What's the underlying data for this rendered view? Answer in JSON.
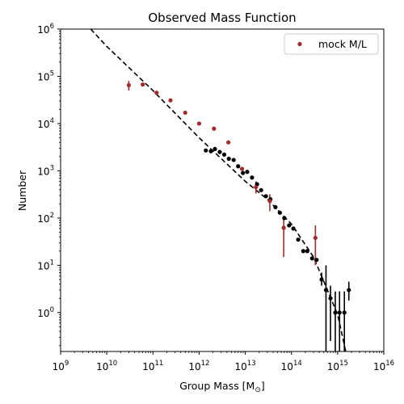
{
  "chart_data": {
    "type": "scatter",
    "title": "Observed Mass Function",
    "xlabel": "Group Mass [M",
    "xlabel_sub": "⊙",
    "xlabel_close": "]",
    "ylabel": "Number",
    "xscale": "log",
    "yscale": "log",
    "xlim": [
      1000000000.0,
      1e+16
    ],
    "ylim": [
      0.15,
      1000000.0
    ],
    "grid": false,
    "legend_position": "top-right",
    "x_ticks": [
      {
        "base": "10",
        "exp": "9",
        "value": 1000000000.0
      },
      {
        "base": "10",
        "exp": "10",
        "value": 10000000000.0
      },
      {
        "base": "10",
        "exp": "11",
        "value": 100000000000.0
      },
      {
        "base": "10",
        "exp": "12",
        "value": 1000000000000.0
      },
      {
        "base": "10",
        "exp": "13",
        "value": 10000000000000.0
      },
      {
        "base": "10",
        "exp": "14",
        "value": 100000000000000.0
      },
      {
        "base": "10",
        "exp": "15",
        "value": 1000000000000000.0
      },
      {
        "base": "10",
        "exp": "16",
        "value": 1e+16
      }
    ],
    "y_ticks": [
      {
        "base": "10",
        "exp": "0",
        "value": 1
      },
      {
        "base": "10",
        "exp": "1",
        "value": 10
      },
      {
        "base": "10",
        "exp": "2",
        "value": 100
      },
      {
        "base": "10",
        "exp": "3",
        "value": 1000
      },
      {
        "base": "10",
        "exp": "4",
        "value": 10000
      },
      {
        "base": "10",
        "exp": "5",
        "value": 100000
      },
      {
        "base": "10",
        "exp": "6",
        "value": 1000000
      }
    ],
    "series": [
      {
        "name": "mock M/L",
        "color": "#a52a2a",
        "points": [
          {
            "x": 30000000000.0,
            "y": 65000,
            "ylo": 50000,
            "yhi": 80000
          },
          {
            "x": 60000000000.0,
            "y": 67000
          },
          {
            "x": 120000000000.0,
            "y": 45000
          },
          {
            "x": 240000000000.0,
            "y": 31000
          },
          {
            "x": 500000000000.0,
            "y": 17000
          },
          {
            "x": 1000000000000.0,
            "y": 10000
          },
          {
            "x": 2100000000000.0,
            "y": 7800
          },
          {
            "x": 4300000000000.0,
            "y": 4000
          },
          {
            "x": 8500000000000.0,
            "y": 1100
          },
          {
            "x": 17000000000000.0,
            "y": 450,
            "ylo": 330,
            "yhi": 600
          },
          {
            "x": 34000000000000.0,
            "y": 230,
            "ylo": 140,
            "yhi": 320
          },
          {
            "x": 68000000000000.0,
            "y": 62,
            "ylo": 15,
            "yhi": 110
          },
          {
            "x": 330000000000000.0,
            "y": 38,
            "ylo": 10,
            "yhi": 70
          }
        ]
      },
      {
        "color": "#000000",
        "points": [
          {
            "x": 1400000000000.0,
            "y": 2700
          },
          {
            "x": 1800000000000.0,
            "y": 2600
          },
          {
            "x": 2200000000000.0,
            "y": 2900
          },
          {
            "x": 2800000000000.0,
            "y": 2500
          },
          {
            "x": 3500000000000.0,
            "y": 2200
          },
          {
            "x": 4400000000000.0,
            "y": 1800
          },
          {
            "x": 5600000000000.0,
            "y": 1700
          },
          {
            "x": 7000000000000.0,
            "y": 1250
          },
          {
            "x": 8900000000000.0,
            "y": 900
          },
          {
            "x": 11000000000000.0,
            "y": 950
          },
          {
            "x": 14000000000000.0,
            "y": 720
          },
          {
            "x": 18000000000000.0,
            "y": 520
          },
          {
            "x": 22000000000000.0,
            "y": 390
          },
          {
            "x": 28000000000000.0,
            "y": 290
          },
          {
            "x": 35000000000000.0,
            "y": 250
          },
          {
            "x": 45000000000000.0,
            "y": 170
          },
          {
            "x": 56000000000000.0,
            "y": 130
          },
          {
            "x": 70000000000000.0,
            "y": 100
          },
          {
            "x": 89000000000000.0,
            "y": 70
          },
          {
            "x": 110000000000000.0,
            "y": 60
          },
          {
            "x": 140000000000000.0,
            "y": 35
          },
          {
            "x": 180000000000000.0,
            "y": 20
          },
          {
            "x": 220000000000000.0,
            "y": 20
          },
          {
            "x": 280000000000000.0,
            "y": 14
          },
          {
            "x": 350000000000000.0,
            "y": 13
          },
          {
            "x": 450000000000000.0,
            "y": 5,
            "ylo": 3.7,
            "yhi": 7
          },
          {
            "x": 560000000000000.0,
            "y": 3,
            "ylo": 0.15,
            "yhi": 10
          },
          {
            "x": 700000000000000.0,
            "y": 2,
            "ylo": 0.25,
            "yhi": 3.7
          },
          {
            "x": 890000000000000.0,
            "y": 1,
            "ylo": 0.15,
            "yhi": 2.8
          },
          {
            "x": 1100000000000000.0,
            "y": 1,
            "ylo": 0.15,
            "yhi": 2.8
          },
          {
            "x": 1400000000000000.0,
            "y": 1,
            "ylo": 0.15,
            "yhi": 2.8
          },
          {
            "x": 1750000000000000.0,
            "y": 3,
            "ylo": 1.8,
            "yhi": 4.5
          }
        ]
      }
    ],
    "fit_line": {
      "style": "dashed",
      "color": "#000000",
      "points": [
        {
          "x": 4500000000.0,
          "y": 1000000
        },
        {
          "x": 10000000000.0,
          "y": 430000
        },
        {
          "x": 100000000000.0,
          "y": 50000
        },
        {
          "x": 1000000000000.0,
          "y": 5000
        },
        {
          "x": 10000000000000.0,
          "y": 600
        },
        {
          "x": 30000000000000.0,
          "y": 250
        },
        {
          "x": 100000000000000.0,
          "y": 75
        },
        {
          "x": 300000000000000.0,
          "y": 15
        },
        {
          "x": 600000000000000.0,
          "y": 3
        },
        {
          "x": 1000000000000000.0,
          "y": 0.9
        },
        {
          "x": 1500000000000000.0,
          "y": 0.15
        }
      ]
    }
  }
}
